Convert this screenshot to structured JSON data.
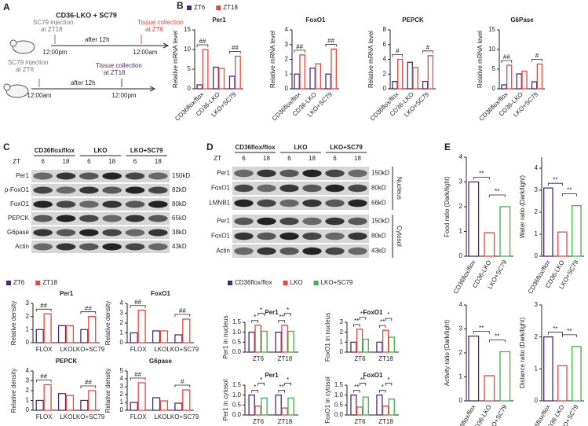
{
  "panel_labels": [
    "A",
    "B",
    "C",
    "D",
    "E"
  ],
  "diagram": {
    "title": "CD36-LKO + SC79",
    "timelines": [
      {
        "injection": [
          "SC79 injection",
          "at ZT18"
        ],
        "collection": [
          "Tissue collection",
          "at ZT6"
        ],
        "interval": "after 12h",
        "start": "12:00pm",
        "end": "12:00am"
      },
      {
        "injection": [
          "SC79 injection",
          "at ZT6"
        ],
        "collection": [
          "Tissue collection",
          "at ZT18"
        ],
        "interval": "after 12h",
        "start": "12:00am",
        "end": "12:00pm"
      }
    ]
  },
  "blots": [
    {
      "groups": [
        "CD36flox/flox",
        "LKO",
        "LKO+SC79"
      ],
      "zt_label": "ZT",
      "times": [
        "6",
        "18",
        "6",
        "18",
        "6",
        "18"
      ],
      "sections": [
        {
          "rows": [
            {
              "name": "Per1",
              "size": "150kD"
            },
            {
              "name": "p-FoxO1",
              "size": "82kD"
            },
            {
              "name": "FoxO1",
              "size": "80kD"
            },
            {
              "name": "PEPCK",
              "size": "65kD"
            },
            {
              "name": "G6pase",
              "size": "38kD"
            },
            {
              "name": "Actin",
              "size": "43kD"
            }
          ]
        }
      ]
    },
    {
      "groups": [
        "CD36flox/flox",
        "LKO",
        "LKO+SC79"
      ],
      "zt_label": "ZT",
      "times": [
        "6",
        "18",
        "6",
        "18",
        "6",
        "18"
      ],
      "sections": [
        {
          "name": "Nucleus",
          "rows": [
            {
              "name": "Per1",
              "size": "150kD"
            },
            {
              "name": "FoxO1",
              "size": "80kD"
            },
            {
              "name": "LMNB1",
              "size": "66kD"
            }
          ]
        },
        {
          "name": "Cytosol",
          "rows": [
            {
              "name": "Per1",
              "size": "150kD"
            },
            {
              "name": "FoxO1",
              "size": "80kD"
            },
            {
              "name": "Actin",
              "size": "43kD"
            }
          ]
        }
      ]
    }
  ],
  "chart_data": [
    {
      "type": "bar",
      "title": "Per1",
      "ylabel": "Relative mRNA level",
      "legend": true,
      "categories": [
        "CD36flox/flox",
        "CD36-LKO",
        "LKO+SC79"
      ],
      "series": [
        {
          "name": "ZT6",
          "color": "#4b2a7b",
          "values": [
            1.0,
            5.5,
            3.2
          ]
        },
        {
          "name": "ZT18",
          "color": "#e8473f",
          "values": [
            10,
            5.2,
            8.3
          ]
        }
      ],
      "ylim": [
        0,
        15
      ],
      "yticks": [
        0,
        5,
        10,
        15
      ],
      "annotations": [
        {
          "text": "##",
          "category": 0
        },
        {
          "text": "##",
          "category": 2
        }
      ]
    },
    {
      "type": "bar",
      "title": "FoxO1",
      "ylabel": "Relative mRNA level",
      "categories": [
        "CD36flox/flox",
        "CD36-LKO",
        "LKO+SC79"
      ],
      "series": [
        {
          "color": "#4b2a7b",
          "values": [
            1.0,
            1.4,
            1.0
          ]
        },
        {
          "color": "#e8473f",
          "values": [
            2.3,
            1.7,
            2.7
          ]
        }
      ],
      "ylim": [
        0,
        4
      ],
      "yticks": [
        0,
        1,
        2,
        3,
        4
      ],
      "annotations": [
        {
          "text": "##",
          "category": 0
        },
        {
          "text": "##",
          "category": 2
        }
      ]
    },
    {
      "type": "bar",
      "title": "PEPCK",
      "ylabel": "Relative mRNA level",
      "categories": [
        "CD36flox/flox",
        "CD36-LKO",
        "LKO+SC79"
      ],
      "series": [
        {
          "color": "#4b2a7b",
          "values": [
            1.0,
            3.6,
            1.0
          ]
        },
        {
          "color": "#e8473f",
          "values": [
            4.0,
            2.9,
            4.5
          ]
        }
      ],
      "ylim": [
        0,
        8
      ],
      "yticks": [
        0,
        2,
        4,
        6,
        8
      ],
      "annotations": [
        {
          "text": "#",
          "category": 0
        },
        {
          "text": "#",
          "category": 2
        }
      ]
    },
    {
      "type": "bar",
      "title": "G6Pase",
      "ylabel": "Relative mRNA level",
      "categories": [
        "CD36flox/flox",
        "CD36-LKO",
        "LKO+SC79"
      ],
      "series": [
        {
          "color": "#4b2a7b",
          "values": [
            1.0,
            3.8,
            1.8
          ]
        },
        {
          "color": "#e8473f",
          "values": [
            6.0,
            4.5,
            6.3
          ]
        }
      ],
      "ylim": [
        0,
        15
      ],
      "yticks": [
        0,
        5,
        10,
        15
      ],
      "annotations": [
        {
          "text": "##",
          "category": 0
        },
        {
          "text": "#",
          "category": 2
        }
      ]
    },
    {
      "type": "bar",
      "title": "Per1",
      "ylabel": "Relative density",
      "legend": true,
      "categories": [
        "FLOX",
        "LKO",
        "LKO+SC79"
      ],
      "series": [
        {
          "name": "ZT6",
          "color": "#4b2a7b",
          "values": [
            1.0,
            1.3,
            1.0
          ]
        },
        {
          "name": "ZT18",
          "color": "#e8473f",
          "values": [
            2.2,
            1.3,
            2.0
          ]
        }
      ],
      "ylim": [
        0,
        3
      ],
      "yticks": [
        0,
        1,
        2,
        3
      ],
      "annotations": [
        {
          "text": "##",
          "category": 0
        },
        {
          "text": "##",
          "category": 2
        }
      ]
    },
    {
      "type": "bar",
      "title": "FoxO1",
      "ylabel": "Relative density",
      "categories": [
        "FLOX",
        "LKO",
        "LKO+SC79"
      ],
      "series": [
        {
          "color": "#4b2a7b",
          "values": [
            1.0,
            1.2,
            0.8
          ]
        },
        {
          "color": "#e8473f",
          "values": [
            3.3,
            1.2,
            2.4
          ]
        }
      ],
      "ylim": [
        0,
        4
      ],
      "yticks": [
        0,
        1,
        2,
        3,
        4
      ],
      "annotations": [
        {
          "text": "##",
          "category": 0
        },
        {
          "text": "##",
          "category": 2
        }
      ]
    },
    {
      "type": "bar",
      "title": "PEPCK",
      "ylabel": "Relative density",
      "categories": [
        "FLOX",
        "LKO",
        "LKO+SC79"
      ],
      "series": [
        {
          "color": "#4b2a7b",
          "values": [
            1.0,
            1.7,
            1.0
          ]
        },
        {
          "color": "#e8473f",
          "values": [
            2.6,
            1.5,
            2.0
          ]
        }
      ],
      "ylim": [
        0,
        4
      ],
      "yticks": [
        0,
        1,
        2,
        3,
        4
      ],
      "annotations": [
        {
          "text": "##",
          "category": 0
        },
        {
          "text": "##",
          "category": 2
        }
      ]
    },
    {
      "type": "bar",
      "title": "G6pase",
      "ylabel": "Relative density",
      "categories": [
        "FLOX",
        "LKO",
        "LKO+SC79"
      ],
      "series": [
        {
          "color": "#4b2a7b",
          "values": [
            1.0,
            1.6,
            0.9
          ]
        },
        {
          "color": "#e8473f",
          "values": [
            3.5,
            1.2,
            2.6
          ]
        }
      ],
      "ylim": [
        0,
        5
      ],
      "yticks": [
        0,
        1,
        2,
        3,
        4,
        5
      ],
      "annotations": [
        {
          "text": "##",
          "category": 0
        },
        {
          "text": "#",
          "category": 2
        }
      ]
    },
    {
      "type": "bar",
      "title": "Per1",
      "ylabel": "Per1 in nucleus",
      "legend": true,
      "categories": [
        "ZT6",
        "ZT18"
      ],
      "series": [
        {
          "name": "CD36flox/flox",
          "color": "#4b2a7b",
          "values": [
            1.0,
            1.0
          ]
        },
        {
          "name": "LKO",
          "color": "#e8473f",
          "values": [
            1.35,
            1.35
          ]
        },
        {
          "name": "LKO+SC79",
          "color": "#3cb44b",
          "values": [
            1.05,
            1.05
          ]
        }
      ],
      "ylim": [
        0,
        1.5
      ],
      "yticks": [
        {
          "value": 0,
          "label": "0.0"
        },
        0.5,
        {
          "value": 1,
          "label": "1.0"
        },
        1.5
      ],
      "annotations": [
        {
          "text": "*",
          "category": 0,
          "series": [
            0,
            1
          ]
        },
        {
          "text": "*",
          "category": 0,
          "series": [
            1,
            2
          ]
        },
        {
          "text": "**",
          "category": 1,
          "series": [
            0,
            1
          ]
        },
        {
          "text": "*",
          "category": 1,
          "series": [
            1,
            2
          ]
        }
      ]
    },
    {
      "type": "bar",
      "title": "FoxO1",
      "ylabel": "FoxO1 in nucleus",
      "categories": [
        "ZT6",
        "ZT18"
      ],
      "series": [
        {
          "color": "#4b2a7b",
          "values": [
            1.0,
            1.0
          ]
        },
        {
          "color": "#e8473f",
          "values": [
            2.3,
            2.2
          ]
        },
        {
          "color": "#3cb44b",
          "values": [
            1.3,
            1.5
          ]
        }
      ],
      "ylim": [
        0,
        3
      ],
      "yticks": [
        0,
        1,
        2,
        3
      ],
      "annotations": [
        {
          "text": "**",
          "category": 0,
          "series": [
            0,
            1
          ]
        },
        {
          "text": "**",
          "category": 0,
          "series": [
            1,
            2
          ]
        },
        {
          "text": "**",
          "category": 1,
          "series": [
            0,
            1
          ]
        },
        {
          "text": "*",
          "category": 1,
          "series": [
            1,
            2
          ]
        }
      ]
    },
    {
      "type": "bar",
      "title": "Per1",
      "ylabel": "Per1 in cytosol",
      "categories": [
        "ZT6",
        "ZT18"
      ],
      "series": [
        {
          "color": "#4b2a7b",
          "values": [
            1.0,
            1.0
          ]
        },
        {
          "color": "#e8473f",
          "values": [
            0.45,
            0.35
          ]
        },
        {
          "color": "#3cb44b",
          "values": [
            0.85,
            0.85
          ]
        }
      ],
      "ylim": [
        0,
        1.5
      ],
      "yticks": [
        {
          "value": 0,
          "label": "0.0"
        },
        0.5,
        {
          "value": 1,
          "label": "1.0"
        },
        1.5
      ],
      "annotations": [
        {
          "text": "*",
          "category": 0,
          "series": [
            0,
            1
          ]
        },
        {
          "text": "*",
          "category": 0,
          "series": [
            1,
            2
          ]
        },
        {
          "text": "**",
          "category": 1,
          "series": [
            0,
            1
          ]
        },
        {
          "text": "*",
          "category": 1,
          "series": [
            1,
            2
          ]
        }
      ]
    },
    {
      "type": "bar",
      "title": "FoxO1",
      "ylabel": "FoxO1 in cytosol",
      "categories": [
        "ZT6",
        "ZT18"
      ],
      "series": [
        {
          "color": "#4b2a7b",
          "values": [
            1.0,
            1.0
          ]
        },
        {
          "color": "#e8473f",
          "values": [
            0.4,
            0.45
          ]
        },
        {
          "color": "#3cb44b",
          "values": [
            0.9,
            0.8
          ]
        }
      ],
      "ylim": [
        0,
        1.5
      ],
      "yticks": [
        {
          "value": 0,
          "label": "0.0"
        },
        0.5,
        {
          "value": 1,
          "label": "1.0"
        },
        1.5
      ],
      "annotations": [
        {
          "text": "**",
          "category": 0,
          "series": [
            0,
            1
          ]
        },
        {
          "text": "**",
          "category": 0,
          "series": [
            1,
            2
          ]
        },
        {
          "text": "*",
          "category": 1,
          "series": [
            0,
            1
          ]
        },
        {
          "text": "*",
          "category": 1,
          "series": [
            1,
            2
          ]
        }
      ]
    },
    {
      "type": "bar",
      "ylabel": "Food ratio (Dark/light)",
      "categories": [
        "CD36flox/flox",
        "CD36-LKO",
        "LKO+SC79"
      ],
      "values": [
        3.0,
        0.95,
        2.0
      ],
      "colors": [
        "#4b2a7b",
        "#e8473f",
        "#3cb44b"
      ],
      "ylim": [
        0,
        4
      ],
      "yticks": [
        0,
        1,
        2,
        3,
        4
      ],
      "annotations": [
        {
          "text": "**",
          "between": [
            0,
            1
          ]
        },
        {
          "text": "**",
          "between": [
            1,
            2
          ]
        }
      ]
    },
    {
      "type": "bar",
      "ylabel": "Water ratio (Dark/light)",
      "categories": [
        "CD36flox/flox",
        "CD36-LKO",
        "LKO+SC79"
      ],
      "values": [
        3.1,
        1.1,
        2.3
      ],
      "colors": [
        "#4b2a7b",
        "#e8473f",
        "#3cb44b"
      ],
      "ylim": [
        0,
        4.5
      ],
      "yticks": [
        0,
        1,
        2,
        3,
        4
      ],
      "annotations": [
        {
          "text": "**",
          "between": [
            0,
            1
          ]
        },
        {
          "text": "**",
          "between": [
            1,
            2
          ]
        }
      ]
    },
    {
      "type": "bar",
      "ylabel": "Activity ratio (Dark/light)",
      "categories": [
        "CD36flox/flox",
        "CD36-LKO",
        "LKO+SC79"
      ],
      "values": [
        2.7,
        1.05,
        2.05
      ],
      "colors": [
        "#4b2a7b",
        "#e8473f",
        "#3cb44b"
      ],
      "ylim": [
        0,
        4
      ],
      "yticks": [
        0,
        1,
        2,
        3,
        4
      ],
      "annotations": [
        {
          "text": "**",
          "between": [
            0,
            1
          ]
        },
        {
          "text": "**",
          "between": [
            1,
            2
          ]
        }
      ]
    },
    {
      "type": "bar",
      "ylabel": "Distance ratio (Dark/light)",
      "categories": [
        "CD36flox/flox",
        "CD36-LKO",
        "LKO+SC79"
      ],
      "values": [
        2.0,
        1.1,
        1.7
      ],
      "colors": [
        "#4b2a7b",
        "#e8473f",
        "#3cb44b"
      ],
      "ylim": [
        0,
        3
      ],
      "yticks": [
        0,
        1,
        2,
        3
      ],
      "annotations": [
        {
          "text": "**",
          "between": [
            0,
            1
          ]
        },
        {
          "text": "**",
          "between": [
            1,
            2
          ]
        }
      ]
    }
  ]
}
